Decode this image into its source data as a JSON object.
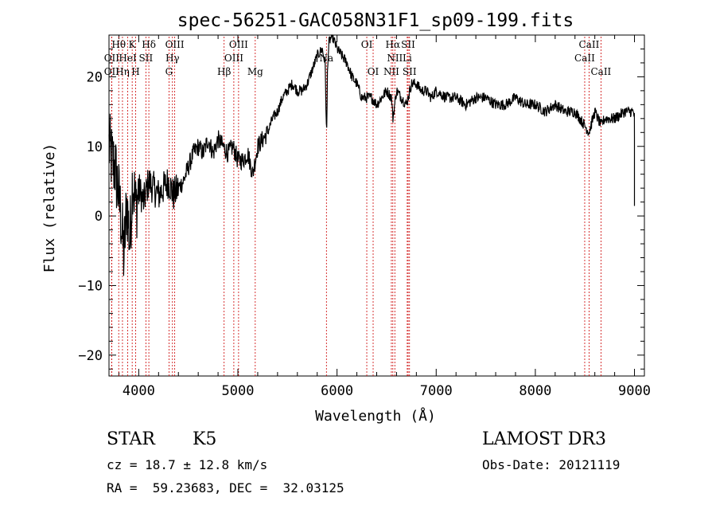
{
  "chart_data": {
    "type": "line",
    "title": "spec-56251-GAC058N31F1_sp09-199.fits",
    "xlabel": "Wavelength (Å)",
    "ylabel": "Flux (relative)",
    "xlim": [
      3700,
      9100
    ],
    "ylim": [
      -23,
      26
    ],
    "xticks": [
      4000,
      5000,
      6000,
      7000,
      8000,
      9000
    ],
    "xtick_labels": [
      "4000",
      "5000",
      "6000",
      "7000",
      "8000",
      "9000"
    ],
    "yticks": [
      -20,
      -10,
      0,
      10,
      20
    ],
    "ytick_labels": [
      "−20",
      "−10",
      "0",
      "10",
      "20"
    ],
    "line_color": "#000000",
    "marker_color": "#cc0000",
    "spectrum": {
      "x": [
        3700,
        3730,
        3760,
        3790,
        3820,
        3850,
        3880,
        3910,
        3940,
        3970,
        4000,
        4050,
        4100,
        4150,
        4200,
        4250,
        4300,
        4350,
        4400,
        4450,
        4500,
        4550,
        4600,
        4650,
        4700,
        4750,
        4800,
        4850,
        4900,
        4950,
        5000,
        5050,
        5100,
        5150,
        5200,
        5250,
        5300,
        5350,
        5400,
        5450,
        5500,
        5550,
        5600,
        5650,
        5700,
        5750,
        5800,
        5850,
        5880,
        5895,
        5905,
        5920,
        5950,
        6000,
        6050,
        6100,
        6150,
        6200,
        6250,
        6300,
        6350,
        6400,
        6450,
        6500,
        6550,
        6563,
        6600,
        6650,
        6700,
        6750,
        6800,
        6850,
        6900,
        6950,
        7000,
        7100,
        7200,
        7300,
        7400,
        7500,
        7600,
        7700,
        7800,
        7900,
        8000,
        8100,
        8200,
        8300,
        8400,
        8498,
        8542,
        8600,
        8662,
        8700,
        8800,
        8900,
        8950,
        8990,
        9000,
        9010
      ],
      "y": [
        10,
        8,
        7,
        4,
        0,
        -6,
        2,
        -4,
        6,
        1,
        4,
        2,
        5,
        4,
        3,
        4,
        5,
        3,
        4,
        5,
        7,
        9,
        10,
        9,
        11,
        9,
        11,
        10,
        9,
        10,
        8,
        8,
        9,
        6,
        10,
        11,
        12,
        14,
        15,
        17,
        18,
        19,
        18,
        18,
        19,
        21,
        23,
        24,
        22,
        11,
        22,
        25,
        26,
        24,
        23,
        22,
        20,
        19,
        17,
        17,
        17,
        16,
        17,
        18,
        17,
        14,
        18,
        17,
        16,
        19,
        19,
        18,
        18,
        17,
        18,
        17,
        17,
        16,
        17,
        17,
        16,
        16,
        17,
        16,
        16,
        15,
        16,
        15,
        15,
        13,
        12,
        15,
        13,
        14,
        14,
        15,
        15,
        15,
        14,
        1
      ]
    },
    "lines": [
      {
        "name": "OII",
        "wl": 3727,
        "row": 2
      },
      {
        "name": "OII",
        "wl": 3727,
        "row": 3
      },
      {
        "name": "Hθ",
        "wl": 3798,
        "row": 1
      },
      {
        "name": "Hη",
        "wl": 3836,
        "row": 3
      },
      {
        "name": "HeI",
        "wl": 3889,
        "row": 2
      },
      {
        "name": "K",
        "wl": 3934,
        "row": 1
      },
      {
        "name": "H",
        "wl": 3969,
        "row": 3
      },
      {
        "name": "SII",
        "wl": 4072,
        "row": 2
      },
      {
        "name": "Hδ",
        "wl": 4102,
        "row": 1
      },
      {
        "name": "G",
        "wl": 4305,
        "row": 3
      },
      {
        "name": "Hγ",
        "wl": 4340,
        "row": 2
      },
      {
        "name": "OIII",
        "wl": 4363,
        "row": 1
      },
      {
        "name": "Hβ",
        "wl": 4861,
        "row": 3
      },
      {
        "name": "OIII",
        "wl": 4959,
        "row": 2
      },
      {
        "name": "OIII",
        "wl": 5007,
        "row": 1
      },
      {
        "name": "Mg",
        "wl": 5175,
        "row": 3
      },
      {
        "name": "Na",
        "wl": 5893,
        "row": 2
      },
      {
        "name": "OI",
        "wl": 6300,
        "row": 1
      },
      {
        "name": "OI",
        "wl": 6364,
        "row": 3
      },
      {
        "name": "NII",
        "wl": 6548,
        "row": 3
      },
      {
        "name": "Hα",
        "wl": 6563,
        "row": 1
      },
      {
        "name": "NII",
        "wl": 6583,
        "row": 2
      },
      {
        "name": "Li",
        "wl": 6708,
        "row": 2
      },
      {
        "name": "SII",
        "wl": 6717,
        "row": 1
      },
      {
        "name": "SII",
        "wl": 6731,
        "row": 3
      },
      {
        "name": "CaII",
        "wl": 8498,
        "row": 2
      },
      {
        "name": "CaII",
        "wl": 8542,
        "row": 1
      },
      {
        "name": "CaII",
        "wl": 8662,
        "row": 3
      }
    ]
  },
  "info": {
    "object_class": "STAR",
    "subclass": "K5",
    "survey": "LAMOST DR3",
    "velocity": "cz = 18.7 ± 12.8 km/s",
    "obs_date": "Obs-Date: 20121119",
    "coordinates": "RA =  59.23683, DEC =  32.03125"
  }
}
